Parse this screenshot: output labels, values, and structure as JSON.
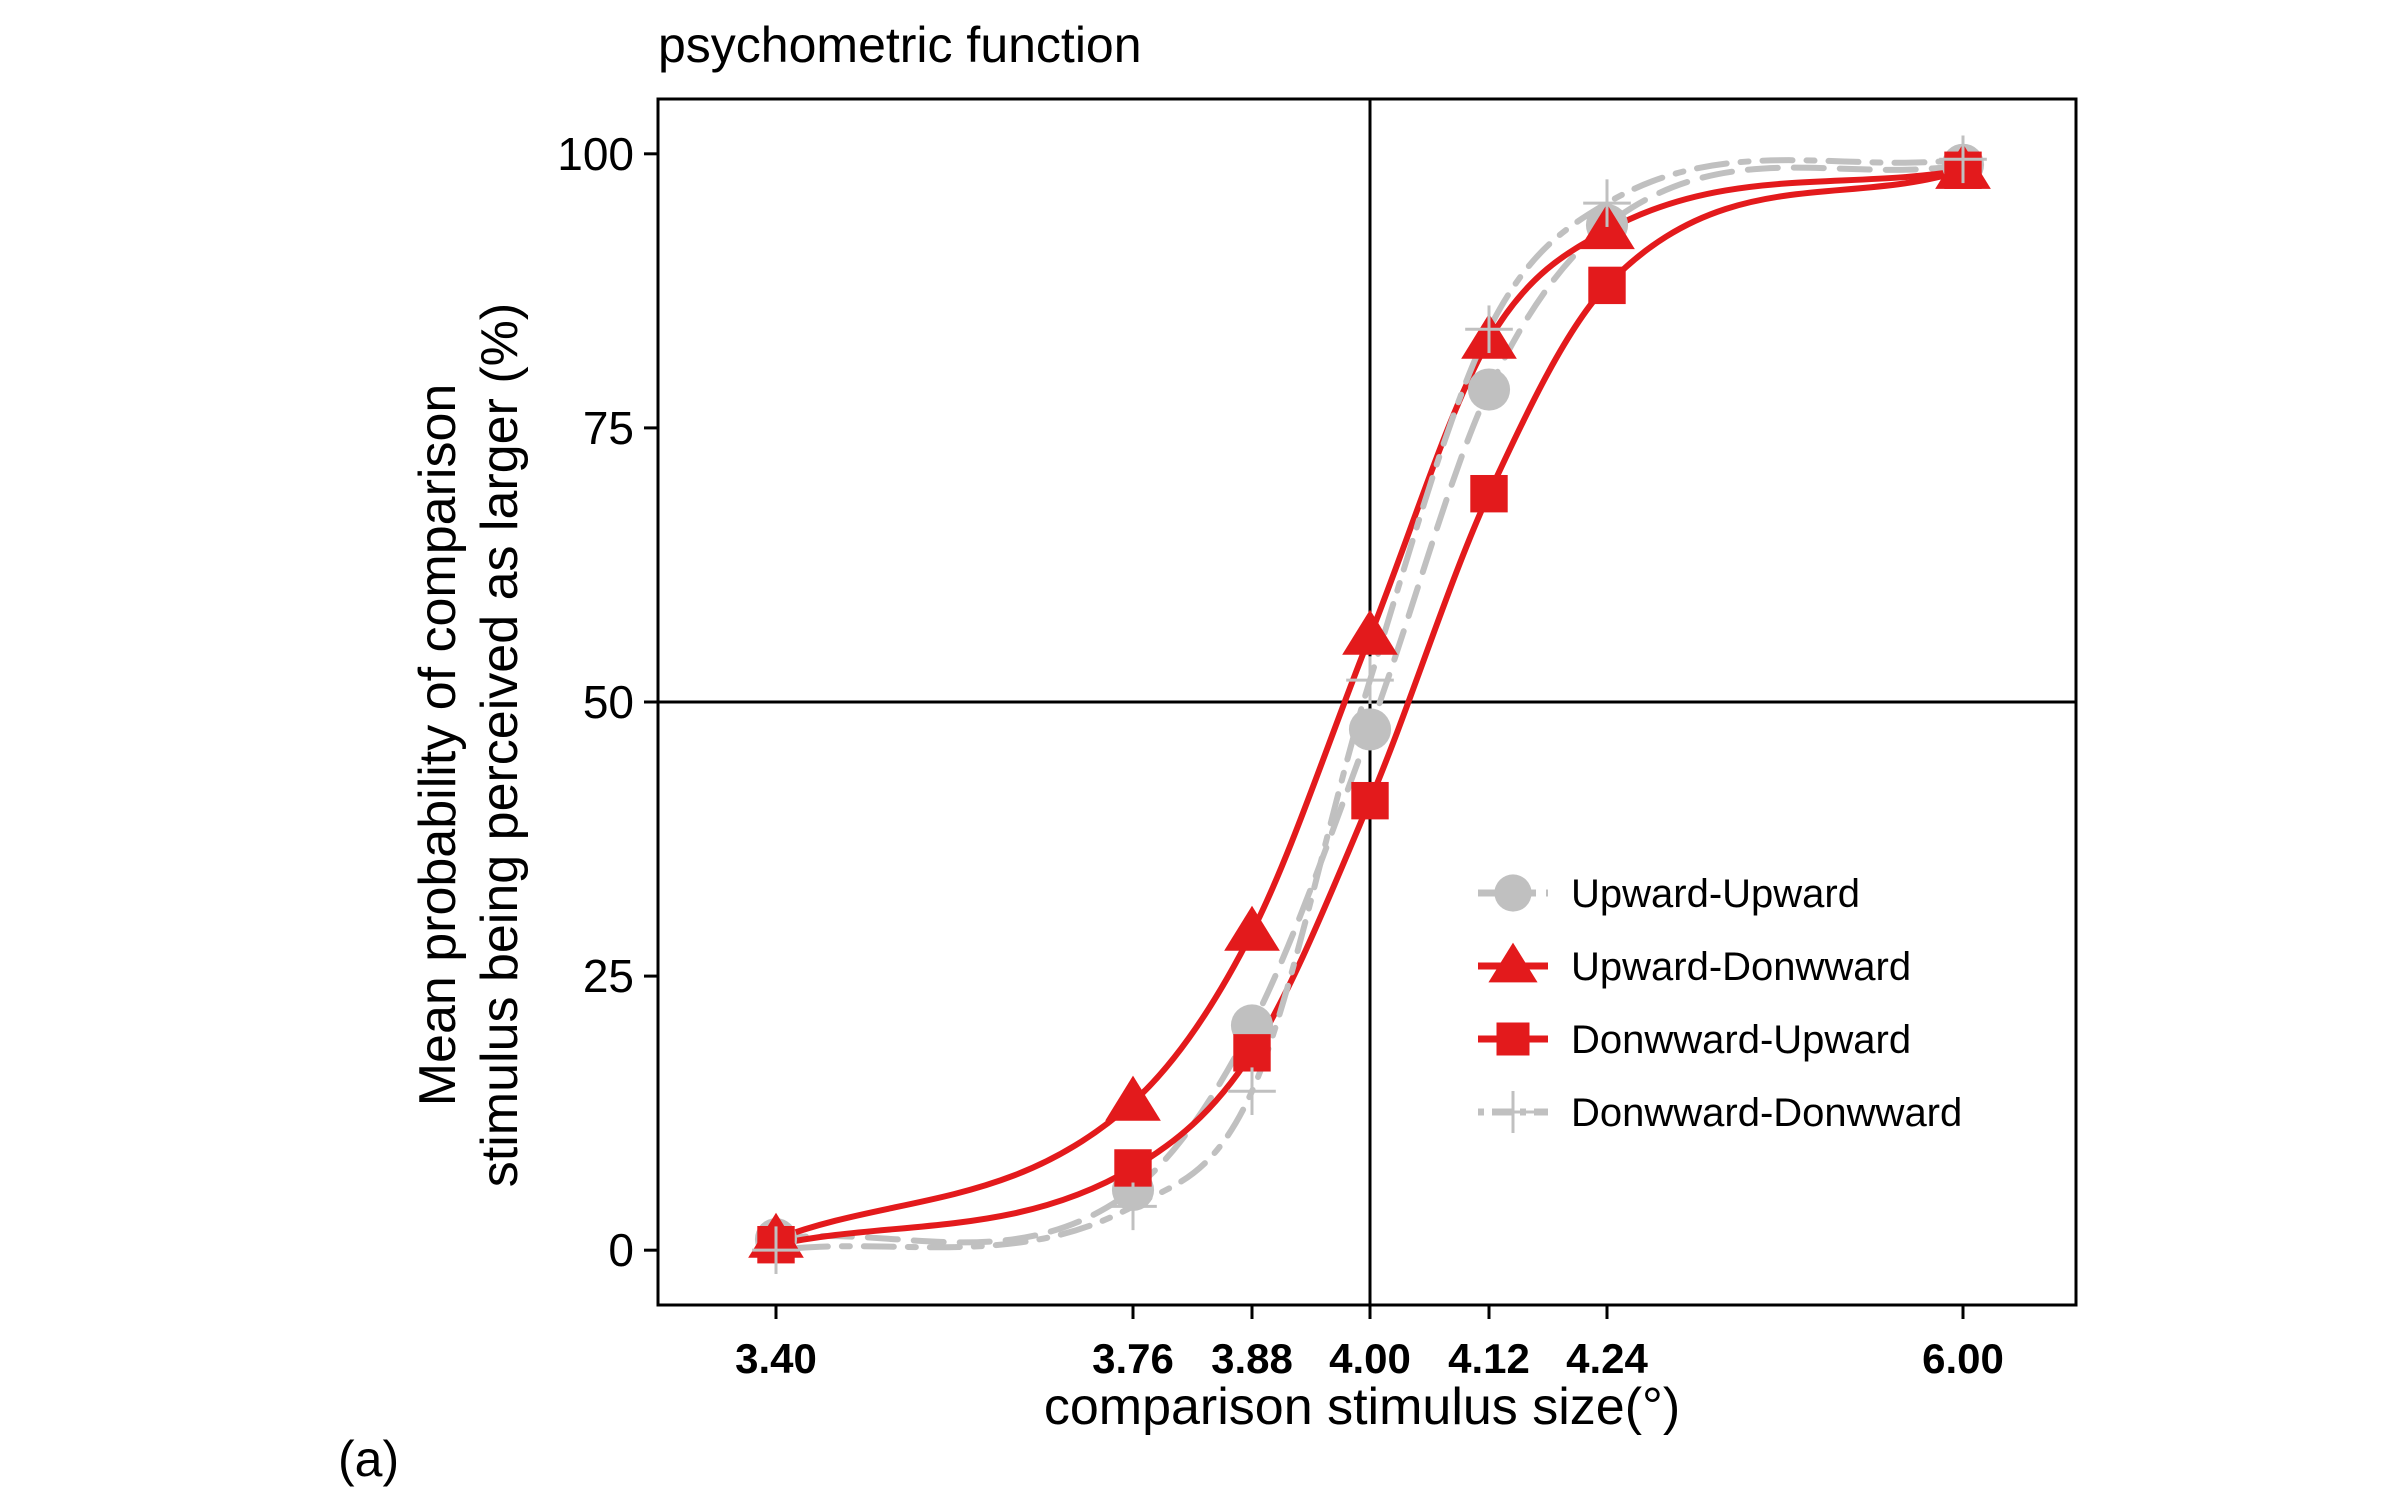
{
  "chart_data": {
    "type": "line",
    "title": "psychometric function",
    "panel_label": "(a)",
    "xlabel": "comparison stimulus size(°)",
    "ylabel_lines": [
      "Mean probability of comparison",
      "stimulus being perceived as larger (%)"
    ],
    "x_ticks": [
      "3.40",
      "3.76",
      "3.88",
      "4.00",
      "4.12",
      "4.24",
      "6.00"
    ],
    "y_ticks": [
      "0",
      "25",
      "50",
      "75",
      "100"
    ],
    "ylim": [
      -5,
      105
    ],
    "reference_lines": {
      "x_tick": "4.00",
      "y": 50
    },
    "legend_position": "bottom-right",
    "grid": false,
    "series": [
      {
        "name": "Upward-Upward",
        "color": "#c0c0c0",
        "marker": "circle",
        "line": "dashed",
        "values": [
          1,
          5.5,
          20.5,
          47.5,
          78.5,
          93.5,
          99
        ]
      },
      {
        "name": "Upward-Donwward",
        "color": "#e31a1c",
        "marker": "triangle",
        "line": "solid",
        "values": [
          1,
          13.5,
          29,
          56,
          83,
          93,
          98.5
        ]
      },
      {
        "name": "Donwward-Upward",
        "color": "#e31a1c",
        "marker": "square",
        "line": "solid",
        "values": [
          0.5,
          7.5,
          18,
          41,
          69,
          88,
          98.5
        ]
      },
      {
        "name": "Donwward-Donwward",
        "color": "#c0c0c0",
        "marker": "cross",
        "line": "dotdash",
        "values": [
          0,
          4,
          14.5,
          52,
          84,
          95.5,
          99.5
        ]
      }
    ]
  }
}
